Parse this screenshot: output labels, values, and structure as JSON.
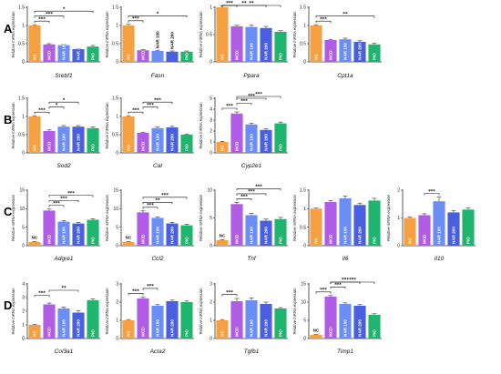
{
  "figure": {
    "colors": {
      "NC": "#f5a042",
      "MCD": "#b05ce6",
      "NAR 100": "#6b8df6",
      "NAR 200": "#4a5fe0",
      "PIO": "#1fb56e"
    }
  },
  "chart_data": [
    {
      "type": "bar",
      "row": "A",
      "row_label": "A",
      "col": 0,
      "gene": "Srebf1",
      "ylabel": "Relative mRNA expression",
      "ylim": [
        0,
        1.5
      ],
      "yticks": [
        0,
        0.5,
        1,
        1.5
      ],
      "categories": [
        "NC",
        "MCD",
        "NAR 100",
        "NAR 200",
        "PIO"
      ],
      "values": [
        1.0,
        0.48,
        0.46,
        0.35,
        0.42
      ],
      "errors": [
        0.02,
        0.02,
        0.02,
        0.02,
        0.03
      ],
      "in_bar_labels": [
        true,
        true,
        true,
        true,
        true
      ],
      "sig": [
        {
          "a": 0,
          "b": 1,
          "label": "***"
        },
        {
          "a": 0,
          "b": 2,
          "label": "***"
        },
        {
          "a": 0,
          "b": 4,
          "label": "*"
        }
      ]
    },
    {
      "type": "bar",
      "row": "A",
      "row_label": "",
      "col": 1,
      "gene": "Fasn",
      "ylabel": "Relative mRNA expression",
      "ylim": [
        0,
        1.5
      ],
      "yticks": [
        0,
        0.5,
        1,
        1.5
      ],
      "categories": [
        "NC",
        "MCD",
        "NAR 100",
        "NAR 200",
        "PIO"
      ],
      "values": [
        1.0,
        0.32,
        0.3,
        0.28,
        0.28
      ],
      "errors": [
        0.03,
        0.02,
        0.02,
        0.02,
        0.02
      ],
      "in_bar_labels": [
        true,
        true,
        false,
        false,
        true
      ],
      "sig": [
        {
          "a": 0,
          "b": 1,
          "label": "***"
        },
        {
          "a": 0,
          "b": 4,
          "label": "*"
        }
      ]
    },
    {
      "type": "bar",
      "row": "A",
      "row_label": "",
      "col": 2,
      "gene": "Ppara",
      "ylabel": "Relative mRNA expression",
      "ylim": [
        0,
        1.0
      ],
      "yticks": [
        0,
        0.5,
        1.0
      ],
      "categories": [
        "NC",
        "MCD",
        "NAR 100",
        "NAR 200",
        "PIO"
      ],
      "values": [
        1.0,
        0.65,
        0.64,
        0.62,
        0.55
      ],
      "errors": [
        0.03,
        0.02,
        0.03,
        0.03,
        0.02
      ],
      "in_bar_labels": [
        true,
        true,
        true,
        true,
        true
      ],
      "sig": [
        {
          "a": 0,
          "b": 1,
          "label": "***"
        },
        {
          "a": 0,
          "b": 3,
          "label": "**"
        },
        {
          "a": 0,
          "b": 4,
          "label": "**"
        }
      ]
    },
    {
      "type": "bar",
      "row": "A",
      "row_label": "",
      "col": 3,
      "gene": "Cpt1a",
      "ylabel": "Relative mRNA expression",
      "ylim": [
        0,
        1.5
      ],
      "yticks": [
        0,
        0.5,
        1,
        1.5
      ],
      "categories": [
        "NC",
        "MCD",
        "NAR 100",
        "NAR 200",
        "PIO"
      ],
      "values": [
        1.0,
        0.6,
        0.62,
        0.55,
        0.48
      ],
      "errors": [
        0.02,
        0.02,
        0.03,
        0.03,
        0.03
      ],
      "in_bar_labels": [
        true,
        true,
        true,
        true,
        true
      ],
      "sig": [
        {
          "a": 0,
          "b": 1,
          "label": "***"
        },
        {
          "a": 0,
          "b": 4,
          "label": "**"
        }
      ]
    },
    {
      "type": "bar",
      "row": "B",
      "row_label": "B",
      "col": 0,
      "gene": "Sod2",
      "ylabel": "Relative mRNA expression",
      "ylim": [
        0,
        1.5
      ],
      "yticks": [
        0,
        0.5,
        1,
        1.5
      ],
      "categories": [
        "NC",
        "MCD",
        "NAR 100",
        "NAR 200",
        "PIO"
      ],
      "values": [
        1.0,
        0.6,
        0.72,
        0.72,
        0.68
      ],
      "errors": [
        0.02,
        0.03,
        0.03,
        0.03,
        0.03
      ],
      "in_bar_labels": [
        true,
        true,
        true,
        true,
        true
      ],
      "sig": [
        {
          "a": 0,
          "b": 1,
          "label": "***"
        },
        {
          "a": 1,
          "b": 2,
          "label": "*"
        },
        {
          "a": 1,
          "b": 3,
          "label": "*"
        }
      ]
    },
    {
      "type": "bar",
      "row": "B",
      "row_label": "",
      "col": 1,
      "gene": "Cat",
      "ylabel": "Relative mRNA expression",
      "ylim": [
        0,
        1.5
      ],
      "yticks": [
        0,
        0.5,
        1,
        1.5
      ],
      "categories": [
        "NC",
        "MCD",
        "NAR 100",
        "NAR 200",
        "PIO"
      ],
      "values": [
        1.0,
        0.55,
        0.68,
        0.7,
        0.5
      ],
      "errors": [
        0.02,
        0.02,
        0.03,
        0.03,
        0.02
      ],
      "in_bar_labels": [
        true,
        true,
        true,
        true,
        true
      ],
      "sig": [
        {
          "a": 0,
          "b": 1,
          "label": "***"
        },
        {
          "a": 1,
          "b": 2,
          "label": "***"
        },
        {
          "a": 1,
          "b": 3,
          "label": "***"
        }
      ]
    },
    {
      "type": "bar",
      "row": "B",
      "row_label": "",
      "col": 2,
      "gene": "Cyp2e1",
      "ylabel": "Relative mRNA expression",
      "ylim": [
        0,
        5
      ],
      "yticks": [
        0,
        1,
        2,
        3,
        4,
        5
      ],
      "categories": [
        "NC",
        "MCD",
        "NAR 100",
        "NAR 200",
        "PIO"
      ],
      "values": [
        1.0,
        3.6,
        2.6,
        2.1,
        2.7
      ],
      "errors": [
        0.05,
        0.15,
        0.1,
        0.1,
        0.12
      ],
      "in_bar_labels": [
        true,
        true,
        true,
        true,
        true
      ],
      "sig": [
        {
          "a": 0,
          "b": 1,
          "label": "***"
        },
        {
          "a": 1,
          "b": 2,
          "label": "***"
        },
        {
          "a": 1,
          "b": 3,
          "label": "***"
        },
        {
          "a": 1,
          "b": 4,
          "label": "***"
        }
      ]
    },
    {
      "type": "bar",
      "row": "C",
      "row_label": "C",
      "col": 0,
      "gene": "Adgre1",
      "ylabel": "Relative mRNA expression",
      "ylim": [
        0,
        15
      ],
      "yticks": [
        0,
        5,
        10,
        15
      ],
      "categories": [
        "NC",
        "MCD",
        "NAR 100",
        "NAR 200",
        "PIO"
      ],
      "values": [
        1.0,
        9.5,
        6.5,
        6.0,
        7.0
      ],
      "errors": [
        0.1,
        0.4,
        0.3,
        0.3,
        0.3
      ],
      "in_bar_labels": [
        false,
        true,
        true,
        true,
        true
      ],
      "sig": [
        {
          "a": 1,
          "b": 2,
          "label": "***"
        },
        {
          "a": 1,
          "b": 3,
          "label": "***"
        },
        {
          "a": 1,
          "b": 4,
          "label": "***"
        }
      ]
    },
    {
      "type": "bar",
      "row": "C",
      "row_label": "",
      "col": 1,
      "gene": "Ccl2",
      "ylabel": "Relative mRNA expression",
      "ylim": [
        0,
        15
      ],
      "yticks": [
        0,
        5,
        10,
        15
      ],
      "categories": [
        "NC",
        "MCD",
        "NAR 100",
        "NAR 200",
        "PIO"
      ],
      "values": [
        1.0,
        9.0,
        7.5,
        6.0,
        5.5
      ],
      "errors": [
        0.1,
        0.4,
        0.3,
        0.3,
        0.3
      ],
      "in_bar_labels": [
        false,
        true,
        true,
        true,
        true
      ],
      "sig": [
        {
          "a": 1,
          "b": 2,
          "label": "***"
        },
        {
          "a": 1,
          "b": 3,
          "label": "**"
        },
        {
          "a": 1,
          "b": 4,
          "label": "***"
        }
      ]
    },
    {
      "type": "bar",
      "row": "C",
      "row_label": "",
      "col": 2,
      "gene": "Tnf",
      "ylabel": "Relative mRNA expression",
      "ylim": [
        0,
        10
      ],
      "yticks": [
        0,
        5,
        10
      ],
      "categories": [
        "NC",
        "MCD",
        "NAR 100",
        "NAR 200",
        "PIO"
      ],
      "values": [
        1.0,
        7.5,
        5.5,
        4.5,
        4.8
      ],
      "errors": [
        0.1,
        0.3,
        0.3,
        0.3,
        0.3
      ],
      "in_bar_labels": [
        false,
        true,
        true,
        true,
        true
      ],
      "sig": [
        {
          "a": 1,
          "b": 2,
          "label": "***"
        },
        {
          "a": 1,
          "b": 3,
          "label": "***"
        },
        {
          "a": 1,
          "b": 4,
          "label": "***"
        }
      ]
    },
    {
      "type": "bar",
      "row": "C",
      "row_label": "",
      "col": 3,
      "gene": "Il6",
      "ylabel": "Relative mRNA expression",
      "ylim": [
        0,
        1.5
      ],
      "yticks": [
        0,
        0.5,
        1,
        1.5
      ],
      "categories": [
        "NC",
        "MCD",
        "NAR 100",
        "NAR 200",
        "PIO"
      ],
      "values": [
        1.0,
        1.18,
        1.28,
        1.1,
        1.22
      ],
      "errors": [
        0.02,
        0.04,
        0.06,
        0.05,
        0.06
      ],
      "in_bar_labels": [
        true,
        true,
        true,
        true,
        true
      ],
      "sig": []
    },
    {
      "type": "bar",
      "row": "C",
      "row_label": "",
      "col": 4,
      "gene": "Il10",
      "ylabel": "Relative mRNA expression",
      "ylim": [
        0,
        2
      ],
      "yticks": [
        0,
        1,
        2
      ],
      "categories": [
        "NC",
        "MCD",
        "NAR 100",
        "NAR 200",
        "PIO"
      ],
      "values": [
        1.0,
        1.1,
        1.6,
        1.2,
        1.3
      ],
      "errors": [
        0.03,
        0.05,
        0.15,
        0.06,
        0.06
      ],
      "in_bar_labels": [
        true,
        true,
        true,
        true,
        true
      ],
      "sig": [
        {
          "a": 1,
          "b": 2,
          "label": "***"
        }
      ]
    },
    {
      "type": "bar",
      "row": "D",
      "row_label": "D",
      "col": 0,
      "gene": "Col3a1",
      "ylabel": "Relative mRNA expression",
      "ylim": [
        0,
        4
      ],
      "yticks": [
        0,
        1,
        2,
        3,
        4
      ],
      "categories": [
        "NC",
        "MCD",
        "NAR 100",
        "NAR 200",
        "PIO"
      ],
      "values": [
        1.0,
        2.5,
        2.2,
        1.9,
        2.8
      ],
      "errors": [
        0.05,
        0.1,
        0.1,
        0.15,
        0.1
      ],
      "in_bar_labels": [
        true,
        true,
        true,
        true,
        true
      ],
      "sig": [
        {
          "a": 0,
          "b": 1,
          "label": "***"
        },
        {
          "a": 1,
          "b": 3,
          "label": "**"
        }
      ]
    },
    {
      "type": "bar",
      "row": "D",
      "row_label": "",
      "col": 1,
      "gene": "Acta2",
      "ylabel": "Relative mRNA expression",
      "ylim": [
        0,
        3
      ],
      "yticks": [
        0,
        1,
        2,
        3
      ],
      "categories": [
        "NC",
        "MCD",
        "NAR 100",
        "NAR 200",
        "PIO"
      ],
      "values": [
        1.0,
        2.2,
        1.8,
        2.05,
        2.0
      ],
      "errors": [
        0.04,
        0.08,
        0.06,
        0.06,
        0.06
      ],
      "in_bar_labels": [
        true,
        true,
        true,
        true,
        true
      ],
      "sig": [
        {
          "a": 0,
          "b": 1,
          "label": "***"
        },
        {
          "a": 1,
          "b": 2,
          "label": "***"
        }
      ]
    },
    {
      "type": "bar",
      "row": "D",
      "row_label": "",
      "col": 2,
      "gene": "Tgfb1",
      "ylabel": "Relative mRNA expression",
      "ylim": [
        0,
        3
      ],
      "yticks": [
        0,
        1,
        2,
        3
      ],
      "categories": [
        "NC",
        "MCD",
        "NAR 100",
        "NAR 200",
        "PIO"
      ],
      "values": [
        1.0,
        2.05,
        2.1,
        1.9,
        1.65
      ],
      "errors": [
        0.04,
        0.15,
        0.12,
        0.1,
        0.05
      ],
      "in_bar_labels": [
        true,
        true,
        true,
        true,
        true
      ],
      "sig": [
        {
          "a": 0,
          "b": 1,
          "label": "***"
        }
      ]
    },
    {
      "type": "bar",
      "row": "D",
      "row_label": "",
      "col": 3,
      "gene": "Timp1",
      "ylabel": "Relative mRNA expression",
      "ylim": [
        0,
        15
      ],
      "yticks": [
        0,
        5,
        10,
        15
      ],
      "categories": [
        "NC",
        "MCD",
        "NAR 100",
        "NAR 200",
        "PIO"
      ],
      "values": [
        1.0,
        11.5,
        9.5,
        9.0,
        6.5
      ],
      "errors": [
        0.1,
        0.3,
        0.3,
        0.3,
        0.3
      ],
      "in_bar_labels": [
        false,
        true,
        true,
        true,
        true
      ],
      "sig": [
        {
          "a": 0,
          "b": 1,
          "label": "***"
        },
        {
          "a": 1,
          "b": 2,
          "label": "***"
        },
        {
          "a": 1,
          "b": 3,
          "label": "***"
        },
        {
          "a": 1,
          "b": 4,
          "label": "***"
        }
      ]
    }
  ]
}
